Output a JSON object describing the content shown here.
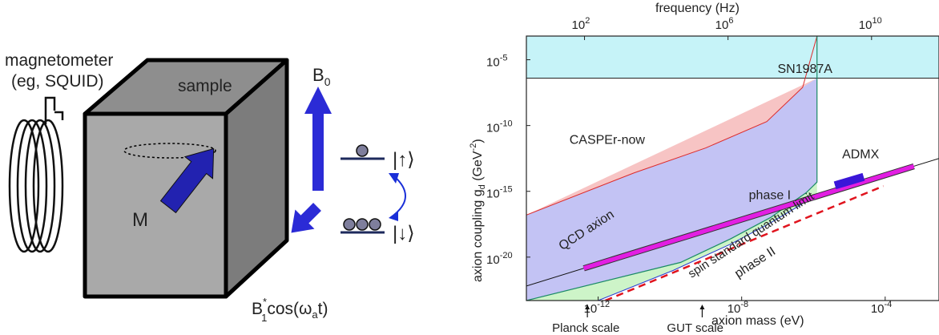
{
  "schematic": {
    "magnetometer_label_line1": "magnetometer",
    "magnetometer_label_line2": "(eg, SQUID)",
    "sample_label": "sample",
    "magnetization_label": "M",
    "b0_label": "B",
    "b0_sub": "0",
    "b1_prefix": "B",
    "b1_sup": "*",
    "b1_sub": "1",
    "b1_rest": "cos(ω",
    "b1_omega_sub": "a",
    "b1_tail": "t)",
    "spin_up_label": "|↑⟩",
    "spin_down_label": "|↓⟩",
    "colors": {
      "arrow": "#2b2bd6",
      "cube_front": "#a9a9a9",
      "cube_top": "#8e8e8e",
      "cube_side": "#7c7c7c"
    }
  },
  "chart_data": {
    "type": "area",
    "xlabel": "axion mass (eV)",
    "ylabel_prefix": "axion coupling g",
    "ylabel_sub": "d",
    "ylabel_unit_open": " (GeV",
    "ylabel_unit_sup": "-2",
    "ylabel_unit_close": ")",
    "x_top_label": "frequency (Hz)",
    "x_log_range_eV": [
      -14,
      -2.5
    ],
    "y_log_range": [
      -23.3,
      -3.2
    ],
    "x_ticks": [
      {
        "exp": -12,
        "base": "10",
        "sup": "-12"
      },
      {
        "exp": -8,
        "base": "10",
        "sup": "-8"
      },
      {
        "exp": -4,
        "base": "10",
        "sup": "-4"
      }
    ],
    "x_top_ticks": [
      {
        "exp": 2,
        "base": "10",
        "sup": "2"
      },
      {
        "exp": 6,
        "base": "10",
        "sup": "6"
      },
      {
        "exp": 10,
        "base": "10",
        "sup": "10"
      }
    ],
    "y_ticks": [
      {
        "exp": -5,
        "base": "10",
        "sup": "-5"
      },
      {
        "exp": -10,
        "base": "10",
        "sup": "-10"
      },
      {
        "exp": -15,
        "base": "10",
        "sup": "-15"
      },
      {
        "exp": -20,
        "base": "10",
        "sup": "-20"
      }
    ],
    "regions": [
      {
        "label": "SN1987A",
        "color": "#c6f3f8",
        "label_at": [
          -7,
          -6
        ]
      },
      {
        "label": "CASPEr-now",
        "color": "#f7c4c4",
        "label_at": [
          -12.8,
          -11.4
        ]
      },
      {
        "label": "phase I",
        "color": "#c3c3f4",
        "label_at": [
          -7.8,
          -15.6
        ]
      },
      {
        "label": "phase II",
        "color": "#cdf4c8",
        "label_at": [
          -8.1,
          -21.6
        ]
      }
    ],
    "sn_bound_log_g": -6.4,
    "casper_now_edge": [
      [
        -14,
        -16.8
      ],
      [
        -11,
        -13.6
      ],
      [
        -9,
        -11.7
      ],
      [
        -7.3,
        -9.7
      ],
      [
        -6.3,
        -7.1
      ],
      [
        -5.9,
        -3.2
      ]
    ],
    "phase1_edge": [
      [
        -14,
        -23.3
      ],
      [
        -9.7,
        -20.4
      ],
      [
        -8.3,
        -18.6
      ],
      [
        -7.2,
        -17
      ],
      [
        -6.2,
        -15.1
      ],
      [
        -5.9,
        -14.3
      ],
      [
        -5.9,
        -3.2
      ]
    ],
    "phase2_edge": [
      [
        -14,
        -23.3
      ],
      [
        -12,
        -23.3
      ],
      [
        -9.9,
        -21.0
      ],
      [
        -8.3,
        -19.0
      ],
      [
        -7.2,
        -17.4
      ],
      [
        -6.4,
        -16.1
      ],
      [
        -5.9,
        -15.2
      ]
    ],
    "qcd_line": [
      [
        -14,
        -22.2
      ],
      [
        -2.5,
        -12.5
      ]
    ],
    "qcd_band": [
      [
        -12.4,
        -20.85
      ],
      [
        -3.2,
        -13.1
      ]
    ],
    "admx_segment": [
      [
        -5.4,
        -14.55
      ],
      [
        -4.6,
        -13.9
      ]
    ],
    "sql_line": [
      [
        -11.8,
        -23.3
      ],
      [
        -4.05,
        -14.6
      ]
    ],
    "annotations": {
      "qcd_axion": "QCD axion",
      "admx": "ADMX",
      "sql": "spin standard quantum limit",
      "planck": "Planck scale",
      "gut": "GUT scale"
    },
    "planck_at": -12.3,
    "gut_at": -9.1,
    "grid": false,
    "colors": {
      "qcd": "#e21ee2",
      "admx": "#3a16d8",
      "sql": "#e0141e",
      "casper_edge": "#dd2b2b",
      "phase1_edge": "#2a3bd0",
      "sn_edge": "#1a8a66"
    }
  }
}
